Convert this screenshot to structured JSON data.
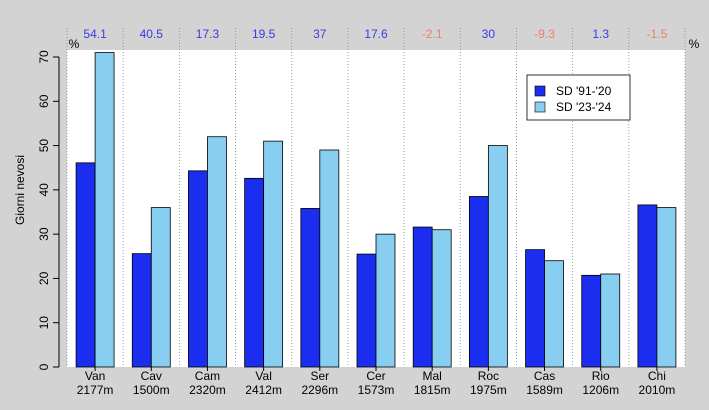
{
  "chart_data": {
    "type": "bar",
    "ylabel": "Giorni nevosi",
    "ylim": [
      0,
      70
    ],
    "yticks": [
      0,
      10,
      20,
      30,
      40,
      50,
      60,
      70
    ],
    "grid": "vertical dotted separators",
    "legend_position": "top-right",
    "categories": [
      {
        "name": "Van",
        "elevation": "2177m"
      },
      {
        "name": "Cav",
        "elevation": "1500m"
      },
      {
        "name": "Cam",
        "elevation": "2320m"
      },
      {
        "name": "Val",
        "elevation": "2412m"
      },
      {
        "name": "Ser",
        "elevation": "2296m"
      },
      {
        "name": "Cer",
        "elevation": "1573m"
      },
      {
        "name": "Mal",
        "elevation": "1815m"
      },
      {
        "name": "Roc",
        "elevation": "1975m"
      },
      {
        "name": "Cas",
        "elevation": "1589m"
      },
      {
        "name": "Rio",
        "elevation": "1206m"
      },
      {
        "name": "Chi",
        "elevation": "2010m"
      }
    ],
    "series": [
      {
        "name": "SD '91-'20",
        "color": "#1b2ef0",
        "values": [
          46.1,
          25.6,
          44.3,
          42.6,
          35.8,
          25.5,
          31.6,
          38.5,
          26.5,
          20.7,
          36.6
        ]
      },
      {
        "name": "SD '23-'24",
        "color": "#87cef0",
        "values": [
          71,
          36,
          52,
          51,
          49,
          30,
          31,
          50,
          24,
          21,
          36
        ]
      }
    ],
    "percent_unit": "%",
    "percent_changes": [
      "54.1",
      "40.5",
      "17.3",
      "19.5",
      "37",
      "17.6",
      "-2.1",
      "30",
      "-9.3",
      "1.3",
      "-1.5"
    ],
    "colors": {
      "positive": "#3a3ae8",
      "negative": "#e8826a"
    }
  }
}
